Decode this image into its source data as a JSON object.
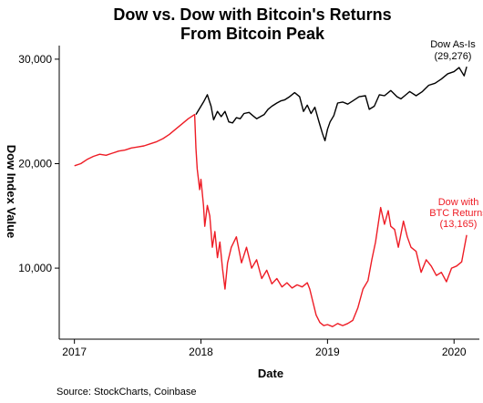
{
  "chart_data": {
    "type": "line",
    "title": [
      "Dow vs. Dow with Bitcoin's Returns",
      "From Bitcoin Peak"
    ],
    "xlabel": "Date",
    "ylabel": "Dow Index Value",
    "xlim": [
      2016.88,
      2020.2
    ],
    "ylim": [
      3200,
      31300
    ],
    "x_ticks": [
      2017,
      2018,
      2019,
      2020
    ],
    "y_ticks": [
      10000,
      20000,
      30000
    ],
    "y_tick_labels": [
      "10,000",
      "20,000",
      "30,000"
    ],
    "grid": false,
    "source": "Source: StockCharts, Coinbase",
    "series": [
      {
        "color": "#000000",
        "annotation": [
          "Dow As-Is",
          "(29,276)"
        ],
        "x": [
          2017.96,
          2018.02,
          2018.05,
          2018.08,
          2018.1,
          2018.13,
          2018.16,
          2018.19,
          2018.22,
          2018.25,
          2018.28,
          2018.31,
          2018.34,
          2018.38,
          2018.41,
          2018.44,
          2018.47,
          2018.5,
          2018.53,
          2018.56,
          2018.6,
          2018.63,
          2018.66,
          2018.7,
          2018.74,
          2018.78,
          2018.81,
          2018.84,
          2018.87,
          2018.9,
          2018.93,
          2018.96,
          2018.98,
          2019.0,
          2019.02,
          2019.05,
          2019.08,
          2019.12,
          2019.16,
          2019.2,
          2019.25,
          2019.3,
          2019.33,
          2019.37,
          2019.41,
          2019.45,
          2019.5,
          2019.55,
          2019.58,
          2019.61,
          2019.65,
          2019.7,
          2019.75,
          2019.8,
          2019.85,
          2019.9,
          2019.95,
          2020.0,
          2020.04,
          2020.08,
          2020.1
        ],
        "y": [
          24700,
          25900,
          26600,
          25500,
          24200,
          25000,
          24500,
          25000,
          24000,
          23900,
          24400,
          24300,
          24800,
          24900,
          24600,
          24300,
          24500,
          24700,
          25200,
          25500,
          25800,
          26000,
          26100,
          26400,
          26800,
          26400,
          25000,
          25600,
          24800,
          25400,
          24100,
          22900,
          22200,
          23300,
          24000,
          24600,
          25800,
          25900,
          25700,
          26000,
          26400,
          26500,
          25200,
          25500,
          26600,
          26500,
          27000,
          26400,
          26200,
          26500,
          26900,
          26500,
          26900,
          27500,
          27700,
          28100,
          28600,
          28800,
          29200,
          28400,
          29276
        ]
      },
      {
        "color": "#ee1c25",
        "annotation": [
          "Dow with",
          "BTC Returns",
          "(13,165)"
        ],
        "x": [
          2017.0,
          2017.05,
          2017.1,
          2017.15,
          2017.2,
          2017.25,
          2017.3,
          2017.35,
          2017.4,
          2017.45,
          2017.5,
          2017.55,
          2017.6,
          2017.65,
          2017.7,
          2017.75,
          2017.8,
          2017.85,
          2017.9,
          2017.95,
          2017.96,
          2017.97,
          2017.99,
          2018.0,
          2018.02,
          2018.03,
          2018.05,
          2018.07,
          2018.09,
          2018.11,
          2018.13,
          2018.15,
          2018.17,
          2018.19,
          2018.21,
          2018.24,
          2018.28,
          2018.32,
          2018.36,
          2018.4,
          2018.44,
          2018.48,
          2018.52,
          2018.56,
          2018.6,
          2018.64,
          2018.68,
          2018.72,
          2018.76,
          2018.8,
          2018.84,
          2018.86,
          2018.88,
          2018.91,
          2018.94,
          2018.97,
          2019.0,
          2019.04,
          2019.08,
          2019.12,
          2019.16,
          2019.2,
          2019.24,
          2019.28,
          2019.32,
          2019.35,
          2019.38,
          2019.42,
          2019.45,
          2019.48,
          2019.5,
          2019.53,
          2019.56,
          2019.6,
          2019.63,
          2019.66,
          2019.7,
          2019.74,
          2019.78,
          2019.82,
          2019.86,
          2019.9,
          2019.94,
          2019.98,
          2020.02,
          2020.06,
          2020.1
        ],
        "y": [
          19800,
          20000,
          20400,
          20700,
          20900,
          20800,
          21000,
          21200,
          21300,
          21500,
          21600,
          21700,
          21900,
          22100,
          22400,
          22800,
          23300,
          23800,
          24300,
          24700,
          21500,
          19500,
          17500,
          18500,
          16000,
          14000,
          16000,
          15000,
          12000,
          13500,
          11000,
          12500,
          10000,
          8000,
          10500,
          12000,
          13000,
          10500,
          12000,
          10000,
          10800,
          9000,
          9800,
          8500,
          9000,
          8200,
          8600,
          8100,
          8400,
          8200,
          8600,
          8000,
          7000,
          5500,
          4800,
          4500,
          4600,
          4400,
          4700,
          4500,
          4700,
          5000,
          6200,
          8000,
          8800,
          10800,
          12500,
          15800,
          14200,
          15500,
          14000,
          13700,
          12000,
          14500,
          13000,
          12000,
          11600,
          9600,
          10800,
          10200,
          9300,
          9600,
          8700,
          10000,
          10200,
          10600,
          13165
        ]
      }
    ]
  }
}
